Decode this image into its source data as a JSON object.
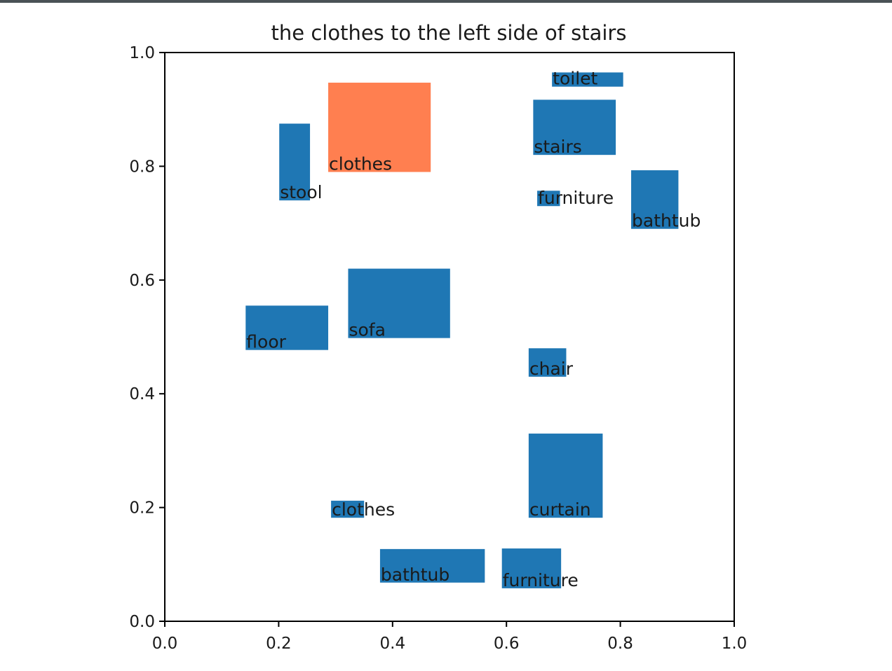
{
  "chart_data": {
    "type": "bar",
    "title": "the clothes to the left side of stairs",
    "xlabel": "",
    "ylabel": "",
    "xlim": [
      0,
      1
    ],
    "ylim": [
      0,
      1
    ],
    "grid": false,
    "xticks": [
      "0.0",
      "0.2",
      "0.4",
      "0.6",
      "0.8",
      "1.0"
    ],
    "yticks": [
      "0.0",
      "0.2",
      "0.4",
      "0.6",
      "0.8",
      "1.0"
    ],
    "colors": {
      "default": "#1f77b4",
      "highlight": "#ff7f50"
    },
    "boxes": [
      {
        "label": "toilet",
        "x0": 0.68,
        "y0": 0.94,
        "x1": 0.805,
        "y1": 0.965,
        "highlight": false
      },
      {
        "label": "clothes",
        "x0": 0.287,
        "y0": 0.79,
        "x1": 0.467,
        "y1": 0.947,
        "highlight": true
      },
      {
        "label": "stairs",
        "x0": 0.647,
        "y0": 0.82,
        "x1": 0.792,
        "y1": 0.917,
        "highlight": false
      },
      {
        "label": "stool",
        "x0": 0.201,
        "y0": 0.74,
        "x1": 0.255,
        "y1": 0.875,
        "highlight": false
      },
      {
        "label": "furniture",
        "x0": 0.654,
        "y0": 0.73,
        "x1": 0.694,
        "y1": 0.757,
        "highlight": false
      },
      {
        "label": "bathtub",
        "x0": 0.819,
        "y0": 0.69,
        "x1": 0.902,
        "y1": 0.793,
        "highlight": false
      },
      {
        "label": "sofa",
        "x0": 0.322,
        "y0": 0.498,
        "x1": 0.501,
        "y1": 0.62,
        "highlight": false
      },
      {
        "label": "floor",
        "x0": 0.142,
        "y0": 0.477,
        "x1": 0.287,
        "y1": 0.555,
        "highlight": false
      },
      {
        "label": "chair",
        "x0": 0.639,
        "y0": 0.43,
        "x1": 0.705,
        "y1": 0.48,
        "highlight": false
      },
      {
        "label": "curtain",
        "x0": 0.639,
        "y0": 0.182,
        "x1": 0.769,
        "y1": 0.33,
        "highlight": false
      },
      {
        "label": "clothes",
        "x0": 0.292,
        "y0": 0.182,
        "x1": 0.35,
        "y1": 0.212,
        "highlight": false
      },
      {
        "label": "bathtub",
        "x0": 0.378,
        "y0": 0.068,
        "x1": 0.562,
        "y1": 0.127,
        "highlight": false
      },
      {
        "label": "furniture",
        "x0": 0.592,
        "y0": 0.058,
        "x1": 0.696,
        "y1": 0.128,
        "highlight": false
      }
    ]
  }
}
